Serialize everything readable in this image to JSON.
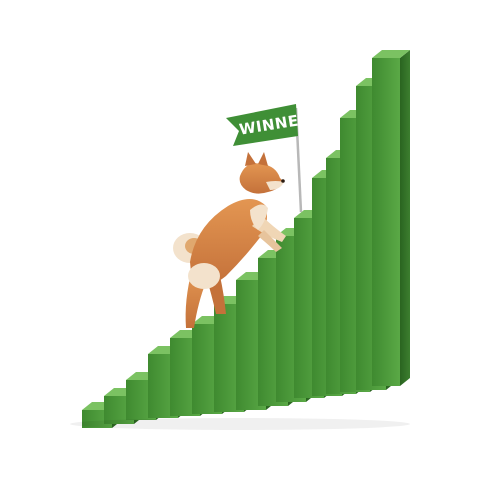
{
  "flag": {
    "text": "WINNER",
    "color": "#3f8f36",
    "text_color": "#ffffff",
    "pole_color": "#b8b8b8"
  },
  "subject": {
    "description_icon": "shiba-dog-icon",
    "fur_color": "#d9884a",
    "cream_color": "#f3e2cc"
  },
  "stairs": {
    "front_color": "#4e9a3c",
    "top_color": "#7bc262",
    "side_color": "#2f6e26"
  }
}
